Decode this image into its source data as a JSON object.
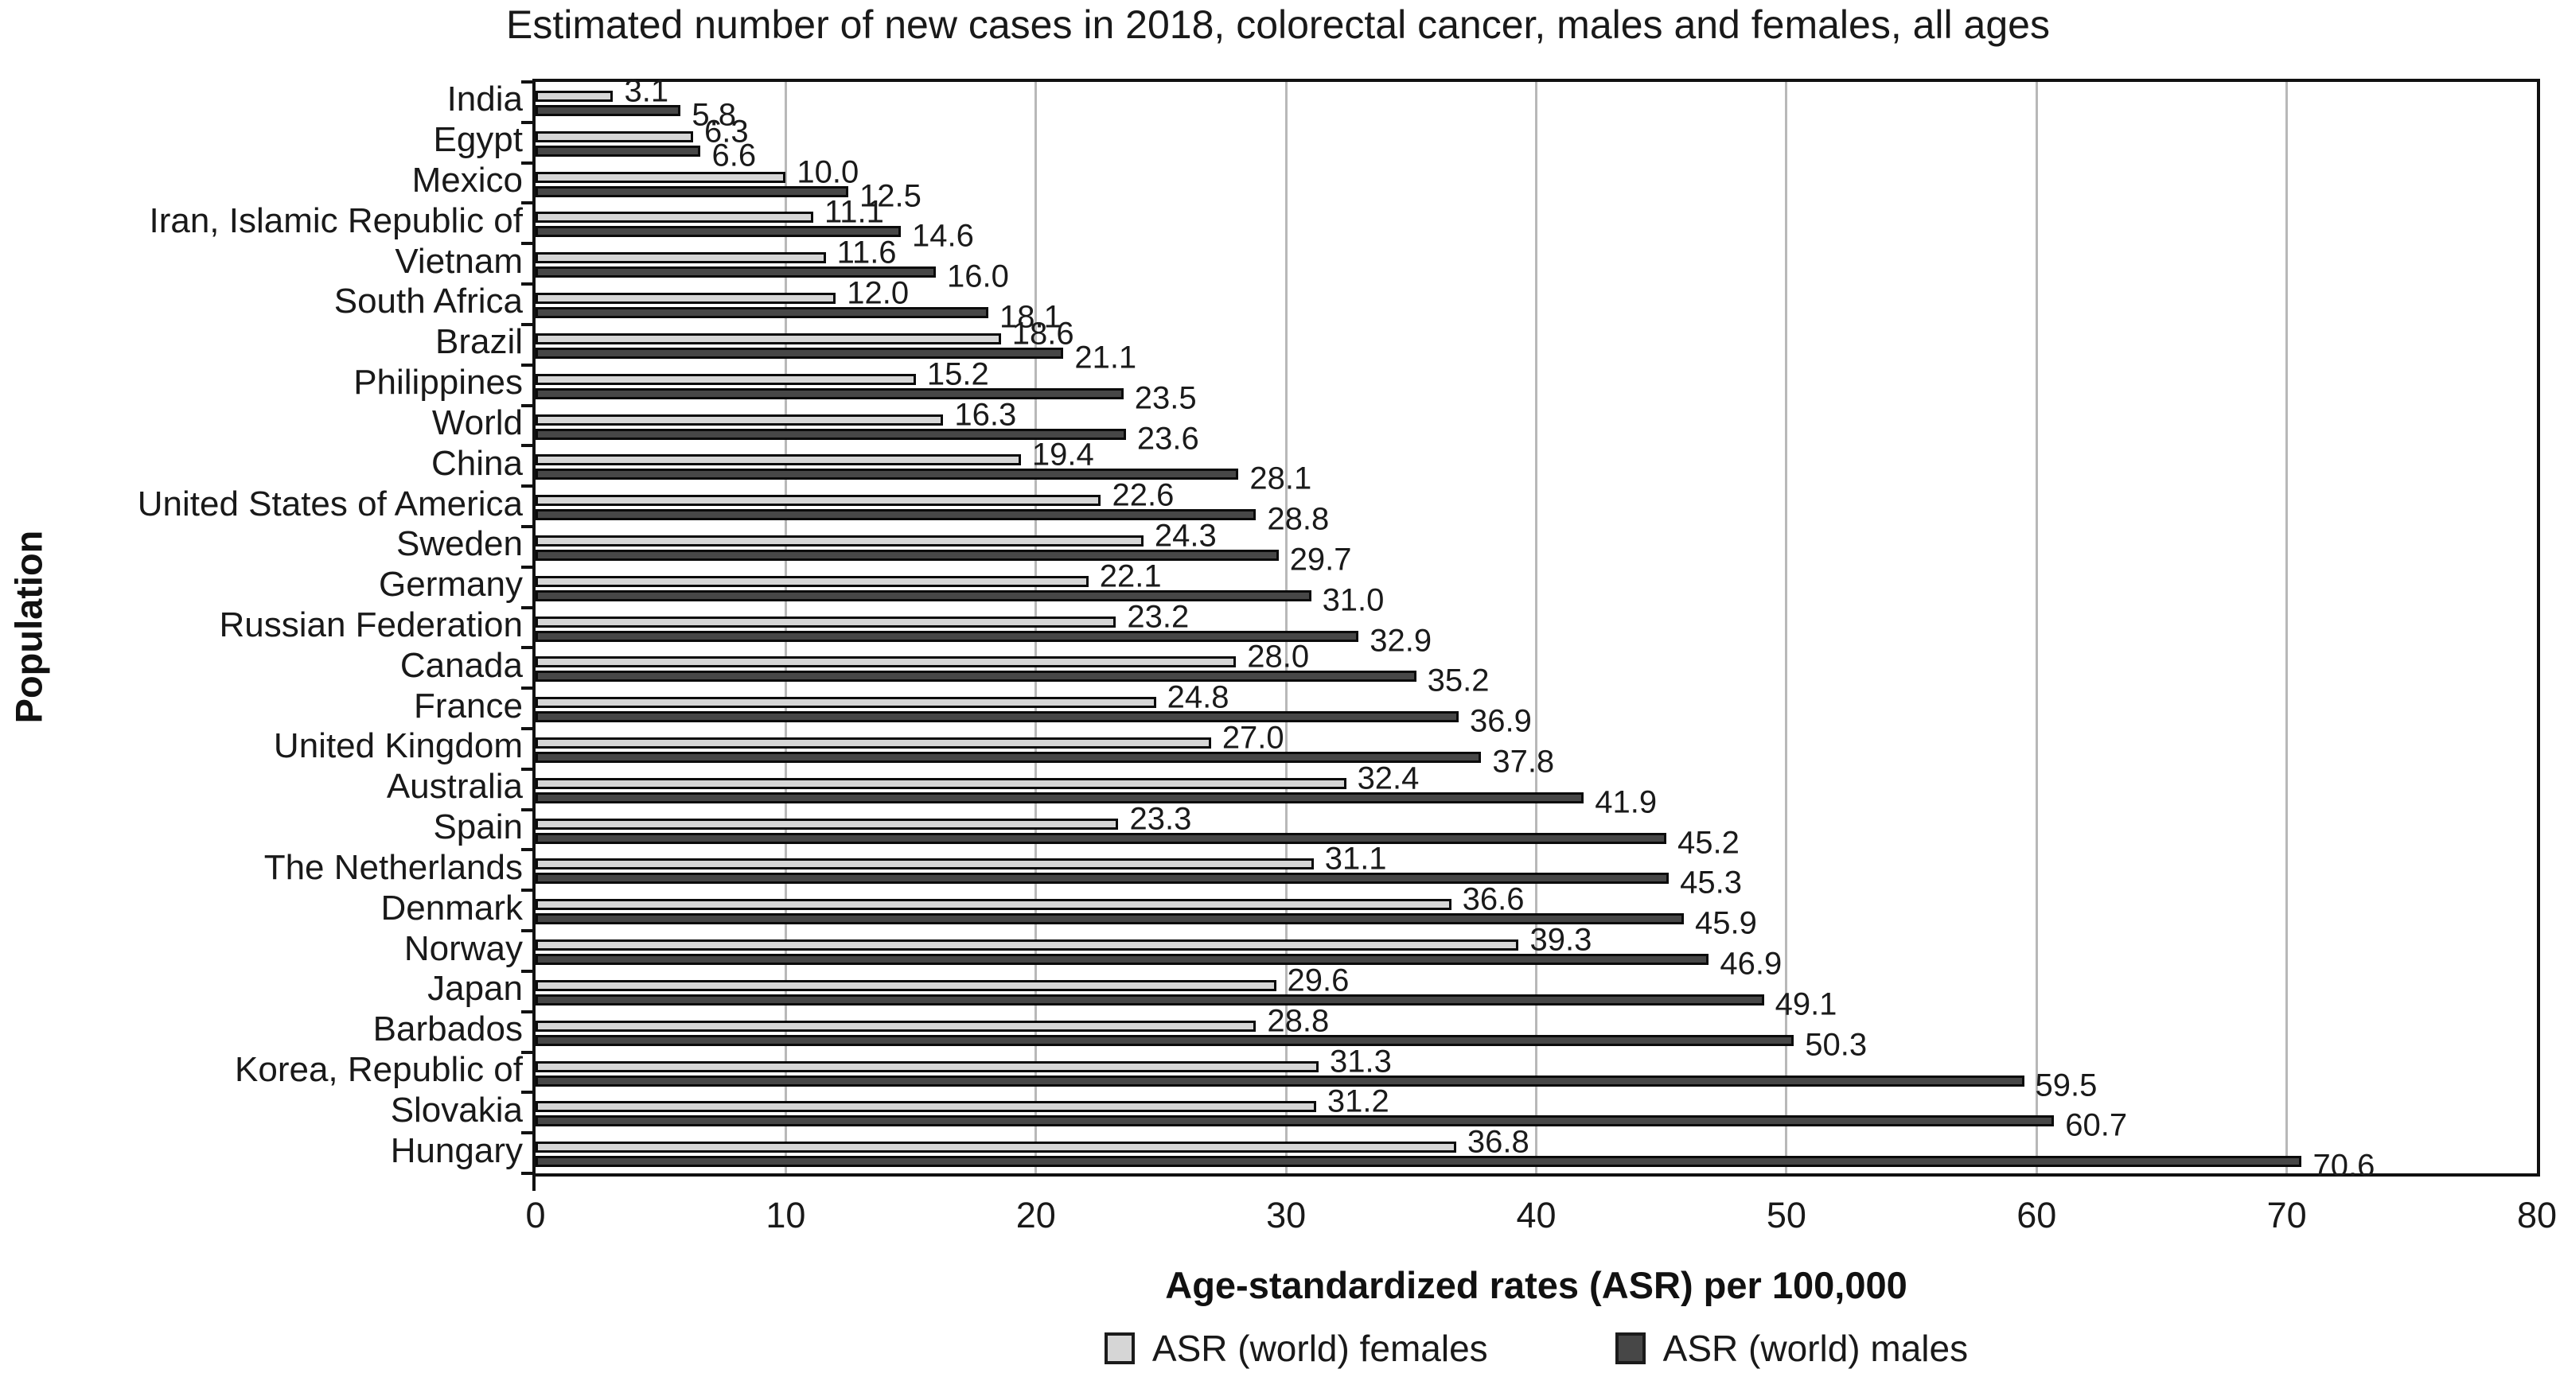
{
  "title": "Estimated number of new cases in 2018, colorectal cancer, males and females, all ages",
  "chart_data": {
    "type": "bar",
    "orientation": "horizontal",
    "title": "Estimated number of new cases in 2018, colorectal cancer, males and females, all ages",
    "xlabel": "Age-standardized rates (ASR) per 100,000",
    "ylabel": "Population",
    "xlim": [
      0,
      80
    ],
    "xticks": [
      0,
      10,
      20,
      30,
      40,
      50,
      60,
      70,
      80
    ],
    "grid": "vertical-gray-lines",
    "legend_position": "bottom-center",
    "value_labels": true,
    "categories": [
      "India",
      "Egypt",
      "Mexico",
      "Iran, Islamic Republic of",
      "Vietnam",
      "South Africa",
      "Brazil",
      "Philippines",
      "World",
      "China",
      "United States of America",
      "Sweden",
      "Germany",
      "Russian Federation",
      "Canada",
      "France",
      "United Kingdom",
      "Australia",
      "Spain",
      "The Netherlands",
      "Denmark",
      "Norway",
      "Japan",
      "Barbados",
      "Korea, Republic of",
      "Slovakia",
      "Hungary"
    ],
    "series": [
      {
        "name": "ASR (world) females",
        "color": "#d6d6d6",
        "values": [
          3.1,
          6.3,
          10.0,
          11.1,
          11.6,
          12.0,
          18.6,
          15.2,
          16.3,
          19.4,
          22.6,
          24.3,
          22.1,
          23.2,
          28.0,
          24.8,
          27.0,
          32.4,
          23.3,
          31.1,
          36.6,
          39.3,
          29.6,
          28.8,
          31.3,
          31.2,
          36.8
        ]
      },
      {
        "name": "ASR (world) males",
        "color": "#474747",
        "values": [
          5.8,
          6.6,
          12.5,
          14.6,
          16.0,
          18.1,
          21.1,
          23.5,
          23.6,
          28.1,
          28.8,
          29.7,
          31.0,
          32.9,
          35.2,
          36.9,
          37.8,
          41.9,
          45.2,
          45.3,
          45.9,
          46.9,
          49.1,
          50.3,
          59.5,
          60.7,
          70.6
        ]
      }
    ]
  },
  "colors": {
    "female_fill": "#d6d6d6",
    "male_fill": "#474747",
    "bar_border": "#0b0b0b",
    "grid_line": "#b8b8b8",
    "frame": "#111111",
    "text": "#191919"
  }
}
